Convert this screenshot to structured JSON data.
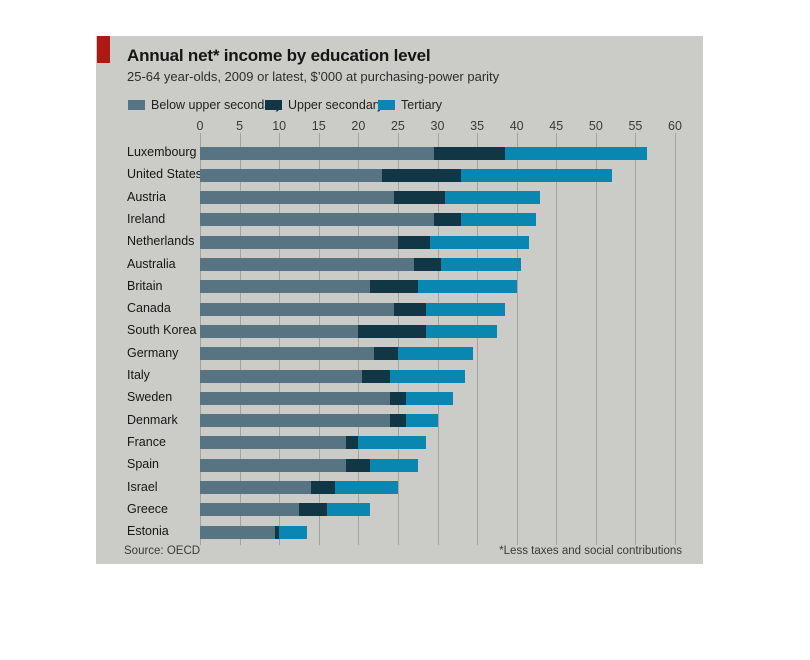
{
  "header": {
    "title": "Annual net* income by education level",
    "subtitle": "25-64 year-olds, 2009 or latest, $’000 at purchasing-power parity"
  },
  "legend": {
    "items": [
      {
        "label": "Below upper secondary",
        "color": "#587381"
      },
      {
        "label": "Upper secondary",
        "color": "#113646"
      },
      {
        "label": "Tertiary",
        "color": "#0987b0"
      }
    ]
  },
  "chart_data": {
    "type": "bar",
    "orientation": "horizontal",
    "overlay": true,
    "title": "Annual net* income by education level",
    "subtitle": "25-64 year-olds, 2009 or latest, $'000 at purchasing-power parity",
    "xlabel": "$'000 at purchasing-power parity",
    "xlim": [
      0,
      60
    ],
    "xticks": [
      0,
      5,
      10,
      15,
      20,
      25,
      30,
      35,
      40,
      45,
      50,
      55,
      60
    ],
    "grid": true,
    "legend_position": "top",
    "categories": [
      "Luxembourg",
      "United States",
      "Austria",
      "Ireland",
      "Netherlands",
      "Australia",
      "Britain",
      "Canada",
      "South Korea",
      "Germany",
      "Italy",
      "Sweden",
      "Denmark",
      "France",
      "Spain",
      "Israel",
      "Greece",
      "Estonia"
    ],
    "series": [
      {
        "name": "Below upper secondary",
        "color": "#587381",
        "values": [
          29.5,
          23,
          24.5,
          29.5,
          25,
          27,
          21.5,
          24.5,
          20,
          22,
          20.5,
          24,
          24,
          18.5,
          18.5,
          14,
          12.5,
          9.5
        ]
      },
      {
        "name": "Upper secondary",
        "color": "#113646",
        "values": [
          38.5,
          33,
          31,
          33,
          29,
          30.5,
          27.5,
          28.5,
          28.5,
          25,
          24,
          26,
          26,
          20,
          21.5,
          17,
          16,
          10
        ]
      },
      {
        "name": "Tertiary",
        "color": "#0987b0",
        "values": [
          56.5,
          52,
          43,
          42.5,
          41.5,
          40.5,
          40,
          38.5,
          37.5,
          34.5,
          33.5,
          32,
          30,
          28.5,
          27.5,
          25,
          21.5,
          13.5
        ]
      }
    ]
  },
  "footer": {
    "source": "Source: OECD",
    "note": "*Less taxes and social contributions"
  },
  "colors": {
    "panel_bg": "#cbcbc8",
    "gridline": "#a3a3a0",
    "accent_red": "#ae1a12",
    "text": "#161616"
  }
}
